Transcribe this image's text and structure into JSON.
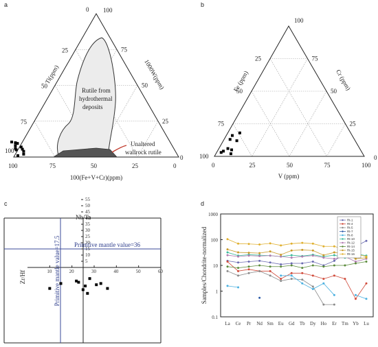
{
  "chart_data": [
    {
      "panel": "a",
      "type": "scatter",
      "ternary": true,
      "vertex_labels": {
        "top": "0",
        "left": "100",
        "right": "0"
      },
      "axis_labels": {
        "left": "Ti(ppm)",
        "right": "1000W(ppm)",
        "bottom": "100(Fe+V+Cr)(ppm)"
      },
      "ticks": {
        "left": [
          "0",
          "25",
          "50",
          "75",
          "100"
        ],
        "right": [
          "100",
          "75",
          "50",
          "25",
          "0"
        ],
        "bottom": [
          "100",
          "75",
          "50",
          "25",
          "0"
        ]
      },
      "region_labels": {
        "field": [
          "Rutile from",
          "hydrothermal",
          "deposits"
        ],
        "wallrock": [
          "Unaltered",
          "wallrock rutile"
        ]
      },
      "points_ti_w": [
        [
          97,
          1
        ],
        [
          93,
          2
        ],
        [
          92,
          4
        ],
        [
          92,
          5.5
        ],
        [
          92,
          7
        ],
        [
          96,
          6
        ],
        [
          95,
          8
        ],
        [
          93,
          9.5
        ],
        [
          94,
          10
        ],
        [
          96,
          10.5
        ],
        [
          96,
          5
        ]
      ]
    },
    {
      "panel": "b",
      "type": "scatter",
      "ternary": true,
      "vertex_labels": {
        "top": "100",
        "right": "0"
      },
      "axis_labels": {
        "left": "Fe (ppm)",
        "right": "Cr (ppm)",
        "bottom": "V (ppm)"
      },
      "ticks": {
        "left": [
          "25",
          "50",
          "75",
          "100"
        ],
        "right": [
          "75",
          "50",
          "25"
        ],
        "bottom": [
          "0",
          "25",
          "50",
          "75",
          "100"
        ]
      },
      "points_fe_cr": [
        [
          74,
          18
        ],
        [
          80,
          16
        ],
        [
          83,
          13
        ],
        [
          79,
          12
        ],
        [
          88,
          6
        ],
        [
          86,
          5
        ],
        [
          88,
          2
        ],
        [
          94,
          3
        ],
        [
          92,
          4
        ]
      ]
    },
    {
      "panel": "c",
      "type": "scatter",
      "x_label": "Zr/Hf",
      "y_label": "Nb/Ta",
      "x_ticks": [
        "10",
        "20",
        "30",
        "40",
        "50",
        "60"
      ],
      "y_ticks": [
        "5",
        "10",
        "15",
        "20",
        "25",
        "30",
        "35",
        "40",
        "45",
        "50",
        "55"
      ],
      "annotations": [
        "Primitive mantle value=17.5",
        "Primitive mantle value=36"
      ],
      "points": [
        [
          10,
          -17
        ],
        [
          15,
          -13
        ],
        [
          22,
          -11
        ],
        [
          23,
          -12
        ],
        [
          25,
          -18
        ],
        [
          26,
          -15
        ],
        [
          27,
          -21
        ],
        [
          28,
          -9
        ],
        [
          31,
          -14
        ],
        [
          33,
          -13
        ],
        [
          36,
          -17
        ]
      ]
    },
    {
      "panel": "d",
      "type": "line",
      "y_label": "Samples/Chondrite-normalized",
      "y_scale": "log",
      "ylim": [
        0.1,
        1000
      ],
      "y_ticks": [
        "0.1",
        "1",
        "10",
        "100",
        "1000"
      ],
      "categories": [
        "La",
        "Ce",
        "Pr",
        "Nd",
        "Sm",
        "Eu",
        "Gd",
        "Tb",
        "Dy",
        "Ho",
        "Er",
        "Tm",
        "Yb",
        "Lu"
      ],
      "series": [
        {
          "name": "Rt-1",
          "color": "#6a6ab0",
          "values": [
            15,
            13,
            14,
            15,
            13,
            11,
            12,
            12,
            14,
            10,
            15,
            30,
            55,
            90
          ]
        },
        {
          "name": "Rt-4",
          "color": "#d04a3a",
          "values": [
            14,
            6,
            7,
            6,
            6,
            3,
            5,
            5,
            4,
            3,
            4,
            3,
            0.5,
            2
          ]
        },
        {
          "name": "Rt-5",
          "color": "#8a8a8a",
          "values": [
            6,
            4,
            5,
            6,
            4,
            2.5,
            3,
            2.8,
            1.5,
            0.3,
            0.3,
            null,
            null,
            null
          ]
        },
        {
          "name": "Rt-7",
          "color": "#2b5aa8",
          "values": [
            null,
            null,
            null,
            0.55,
            null,
            null,
            null,
            null,
            null,
            null,
            null,
            null,
            null,
            null
          ]
        },
        {
          "name": "Rt-8",
          "color": "#4ab0e0",
          "values": [
            1.6,
            1.4,
            null,
            null,
            null,
            4,
            4,
            2,
            1.2,
            2,
            0.7,
            null,
            0.7,
            0.5
          ]
        },
        {
          "name": "Rt-10",
          "color": "#3ab89a",
          "values": [
            32,
            24,
            26,
            25,
            24,
            22,
            25,
            23,
            26,
            22,
            25,
            20,
            28,
            24
          ]
        },
        {
          "name": "Rt-12",
          "color": "#b07ab0",
          "values": [
            25,
            22,
            24,
            23,
            24,
            22,
            20,
            22,
            24,
            20,
            18,
            22,
            14,
            18
          ]
        },
        {
          "name": "Rt-14",
          "color": "#5a8a3a",
          "values": [
            9,
            8,
            9,
            10,
            9,
            9,
            10,
            8,
            10,
            9,
            10,
            10,
            12,
            14
          ]
        },
        {
          "name": "Rt-15",
          "color": "#c89a2a",
          "values": [
            42,
            32,
            31,
            30,
            35,
            26,
            38,
            40,
            38,
            25,
            32,
            30,
            18,
            20
          ]
        },
        {
          "name": "Rt-16",
          "color": "#e0b030",
          "values": [
            105,
            70,
            68,
            65,
            72,
            60,
            70,
            75,
            70,
            55,
            55,
            42,
            28,
            22
          ]
        }
      ]
    }
  ],
  "panels": {
    "a": "a",
    "b": "b",
    "c": "c",
    "d": "d"
  }
}
